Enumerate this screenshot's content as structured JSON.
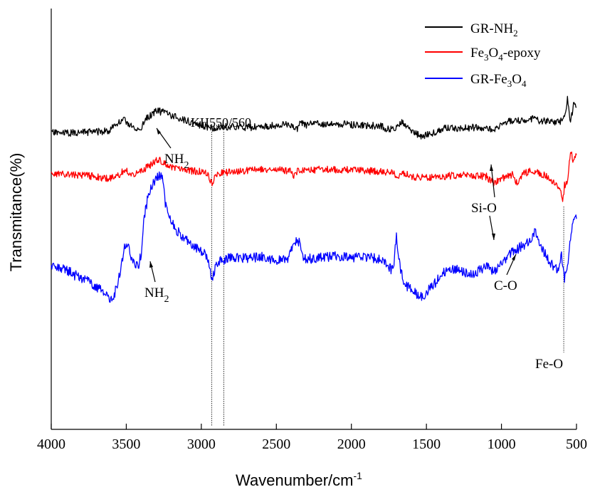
{
  "chart_data": {
    "type": "line",
    "title": "",
    "xlabel": "Wavenumber/cm",
    "xlabel_superscript": "-1",
    "ylabel": "Transmitance(%)",
    "xlim": [
      4000,
      500
    ],
    "x_ticks": [
      4000,
      3500,
      3000,
      2500,
      2000,
      1500,
      1000,
      500
    ],
    "grid": false,
    "legend_position": "top-right",
    "series": [
      {
        "name": "GR-NH2",
        "label_main": "GR-NH",
        "label_sub": "2",
        "color": "#000000",
        "noise": 5,
        "seed": 11,
        "x": [
          4000,
          3900,
          3800,
          3700,
          3620,
          3560,
          3510,
          3470,
          3440,
          3400,
          3370,
          3340,
          3300,
          3270,
          3230,
          3180,
          3120,
          3060,
          3000,
          2960,
          2930,
          2900,
          2860,
          2800,
          2700,
          2600,
          2500,
          2400,
          2360,
          2340,
          2300,
          2200,
          2100,
          2000,
          1900,
          1800,
          1750,
          1700,
          1660,
          1640,
          1600,
          1560,
          1520,
          1480,
          1420,
          1380,
          1300,
          1200,
          1100,
          1050,
          1000,
          950,
          900,
          850,
          800,
          760,
          720,
          680,
          640,
          600,
          580,
          560,
          540,
          520,
          500
        ],
        "y": [
          86,
          87,
          86,
          85,
          84,
          73,
          69,
          76,
          83,
          80,
          67,
          62,
          55,
          57,
          59,
          64,
          68,
          72,
          76,
          78,
          79,
          80,
          78,
          78,
          79,
          78,
          76,
          75,
          80,
          74,
          75,
          74,
          74,
          75,
          76,
          77,
          82,
          78,
          70,
          76,
          84,
          88,
          92,
          88,
          84,
          80,
          80,
          79,
          80,
          82,
          75,
          70,
          70,
          69,
          67,
          69,
          70,
          69,
          71,
          70,
          63,
          40,
          74,
          46,
          53
        ]
      },
      {
        "name": "Fe3O4-epoxy",
        "label_parts": [
          "Fe",
          "3",
          "O",
          "4",
          "-epoxy"
        ],
        "color": "#ff0000",
        "noise": 5,
        "seed": 23,
        "x": [
          4000,
          3900,
          3800,
          3700,
          3620,
          3560,
          3510,
          3470,
          3440,
          3400,
          3350,
          3300,
          3270,
          3230,
          3180,
          3120,
          3060,
          3000,
          2960,
          2930,
          2900,
          2860,
          2800,
          2700,
          2600,
          2500,
          2400,
          2380,
          2360,
          2300,
          2200,
          2100,
          2000,
          1900,
          1800,
          1720,
          1700,
          1650,
          1600,
          1500,
          1400,
          1300,
          1200,
          1100,
          1050,
          1000,
          950,
          920,
          900,
          850,
          800,
          760,
          720,
          680,
          640,
          620,
          600,
          590,
          580,
          560,
          540,
          520,
          500
        ],
        "y": [
          144,
          145,
          146,
          148,
          151,
          148,
          139,
          143,
          145,
          141,
          133,
          126,
          125,
          132,
          137,
          139,
          140,
          141,
          145,
          158,
          146,
          143,
          141,
          140,
          138,
          138,
          141,
          148,
          141,
          139,
          138,
          138,
          139,
          140,
          141,
          142,
          148,
          143,
          148,
          150,
          148,
          146,
          146,
          148,
          158,
          150,
          148,
          145,
          157,
          144,
          140,
          143,
          146,
          150,
          158,
          165,
          171,
          182,
          160,
          155,
          110,
          128,
          116
        ]
      },
      {
        "name": "GR-Fe3O4",
        "label_parts": [
          "GR-Fe",
          "3",
          "O",
          "4"
        ],
        "color": "#0000ff",
        "noise": 7,
        "seed": 37,
        "x": [
          4000,
          3900,
          3850,
          3800,
          3750,
          3700,
          3650,
          3620,
          3580,
          3550,
          3510,
          3480,
          3450,
          3420,
          3400,
          3380,
          3350,
          3330,
          3300,
          3280,
          3260,
          3240,
          3200,
          3150,
          3100,
          3050,
          3000,
          2960,
          2930,
          2900,
          2860,
          2800,
          2700,
          2600,
          2500,
          2420,
          2380,
          2360,
          2340,
          2320,
          2300,
          2200,
          2100,
          2000,
          1900,
          1800,
          1760,
          1720,
          1700,
          1680,
          1650,
          1600,
          1560,
          1520,
          1480,
          1450,
          1400,
          1300,
          1200,
          1100,
          1050,
          1000,
          950,
          900,
          850,
          800,
          780,
          760,
          740,
          700,
          650,
          620,
          600,
          580,
          560,
          540,
          520,
          500
        ],
        "y": [
          276,
          278,
          286,
          290,
          295,
          303,
          310,
          320,
          315,
          290,
          245,
          250,
          272,
          275,
          255,
          205,
          170,
          163,
          150,
          145,
          150,
          185,
          212,
          227,
          237,
          247,
          252,
          262,
          295,
          268,
          266,
          261,
          262,
          261,
          265,
          262,
          240,
          235,
          245,
          260,
          264,
          262,
          260,
          262,
          262,
          263,
          275,
          280,
          230,
          270,
          300,
          305,
          315,
          315,
          305,
          300,
          283,
          278,
          285,
          275,
          282,
          270,
          258,
          250,
          245,
          234,
          225,
          232,
          245,
          260,
          275,
          282,
          258,
          290,
          270,
          235,
          210,
          205
        ]
      }
    ],
    "annotations": {
      "kh_label": "KH550/560",
      "kh_lines_x": [
        2930,
        2850
      ],
      "nh2_label_main": "NH",
      "nh2_label_sub": "2",
      "sio_label": "Si-O",
      "co_label": "C-O",
      "feo_label": "Fe-O",
      "feo_line_x": 585
    }
  }
}
